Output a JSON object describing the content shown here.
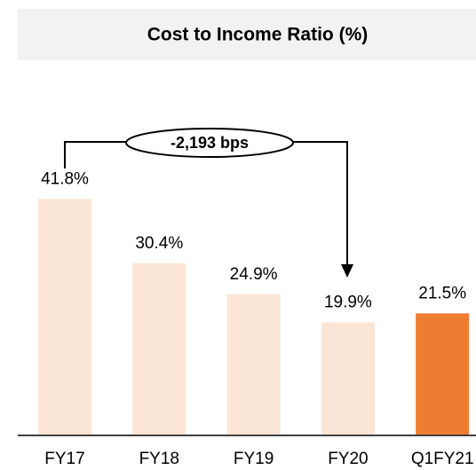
{
  "chart_data": {
    "type": "bar",
    "title": "Cost to Income Ratio (%)",
    "categories": [
      "FY17",
      "FY18",
      "FY19",
      "FY20",
      "Q1FY21"
    ],
    "values": [
      41.8,
      30.4,
      24.9,
      19.9,
      21.5
    ],
    "value_labels": [
      "41.8%",
      "30.4%",
      "24.9%",
      "19.9%",
      "21.5%"
    ],
    "colors": [
      "#fbe5d6",
      "#fbe5d6",
      "#fbe5d6",
      "#fbe5d6",
      "#ed7d31"
    ],
    "ylim": [
      0,
      45
    ],
    "annotation": "-2,193 bps"
  }
}
